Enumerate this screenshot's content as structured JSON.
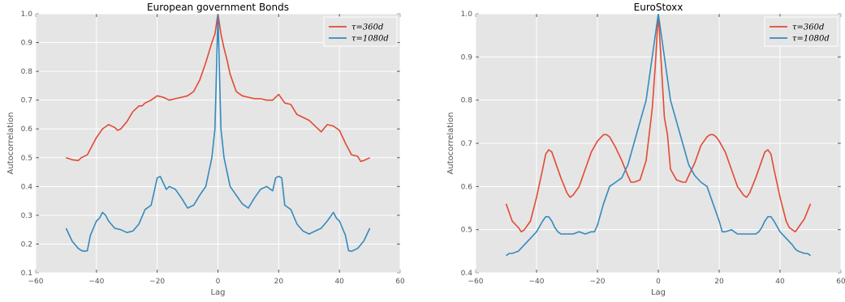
{
  "chart_data": [
    {
      "type": "line",
      "title": "European government Bonds",
      "xlabel": "Lag",
      "ylabel": "Autocorrelation",
      "xlim": [
        -60,
        60
      ],
      "ylim": [
        0.1,
        1.0
      ],
      "xticks": [
        -60,
        -40,
        -20,
        0,
        20,
        40,
        60
      ],
      "xtick_labels": [
        "−60",
        "−40",
        "−20",
        "0",
        "20",
        "40",
        "60"
      ],
      "yticks": [
        0.1,
        0.2,
        0.3,
        0.4,
        0.5,
        0.6,
        0.7,
        0.8,
        0.9,
        1.0
      ],
      "ytick_labels": [
        "0.1",
        "0.2",
        "0.3",
        "0.4",
        "0.5",
        "0.6",
        "0.7",
        "0.8",
        "0.9",
        "1.0"
      ],
      "grid": true,
      "legend": "top-right",
      "series": [
        {
          "name": "τ=360d",
          "color": "#e24a33",
          "points": [
            [
              -50,
              0.5
            ],
            [
              -48,
              0.493
            ],
            [
              -46,
              0.49
            ],
            [
              -45,
              0.5
            ],
            [
              -43,
              0.51
            ],
            [
              -42,
              0.53
            ],
            [
              -40,
              0.57
            ],
            [
              -38,
              0.6
            ],
            [
              -36,
              0.615
            ],
            [
              -35,
              0.61
            ],
            [
              -34,
              0.605
            ],
            [
              -33,
              0.595
            ],
            [
              -32,
              0.6
            ],
            [
              -30,
              0.625
            ],
            [
              -28,
              0.66
            ],
            [
              -26,
              0.68
            ],
            [
              -25,
              0.68
            ],
            [
              -24,
              0.69
            ],
            [
              -22,
              0.7
            ],
            [
              -20,
              0.715
            ],
            [
              -18,
              0.71
            ],
            [
              -16,
              0.7
            ],
            [
              -14,
              0.705
            ],
            [
              -12,
              0.71
            ],
            [
              -10,
              0.715
            ],
            [
              -8,
              0.73
            ],
            [
              -6,
              0.77
            ],
            [
              -4,
              0.83
            ],
            [
              -2,
              0.9
            ],
            [
              -1,
              0.93
            ],
            [
              0,
              1.0
            ],
            [
              1,
              0.93
            ],
            [
              2,
              0.88
            ],
            [
              3,
              0.84
            ],
            [
              4,
              0.79
            ],
            [
              6,
              0.73
            ],
            [
              8,
              0.715
            ],
            [
              10,
              0.71
            ],
            [
              12,
              0.705
            ],
            [
              14,
              0.705
            ],
            [
              16,
              0.7
            ],
            [
              18,
              0.7
            ],
            [
              20,
              0.72
            ],
            [
              22,
              0.69
            ],
            [
              24,
              0.685
            ],
            [
              26,
              0.65
            ],
            [
              28,
              0.64
            ],
            [
              30,
              0.63
            ],
            [
              32,
              0.61
            ],
            [
              34,
              0.59
            ],
            [
              36,
              0.615
            ],
            [
              38,
              0.61
            ],
            [
              40,
              0.595
            ],
            [
              42,
              0.55
            ],
            [
              44,
              0.51
            ],
            [
              46,
              0.505
            ],
            [
              47,
              0.487
            ],
            [
              48,
              0.49
            ],
            [
              50,
              0.5
            ]
          ]
        },
        {
          "name": "τ=1080d",
          "color": "#348abd",
          "points": [
            [
              -50,
              0.255
            ],
            [
              -48,
              0.21
            ],
            [
              -46,
              0.185
            ],
            [
              -45,
              0.178
            ],
            [
              -44,
              0.175
            ],
            [
              -43,
              0.177
            ],
            [
              -42,
              0.23
            ],
            [
              -40,
              0.28
            ],
            [
              -39,
              0.29
            ],
            [
              -38,
              0.31
            ],
            [
              -37,
              0.3
            ],
            [
              -36,
              0.28
            ],
            [
              -34,
              0.255
            ],
            [
              -32,
              0.25
            ],
            [
              -30,
              0.24
            ],
            [
              -28,
              0.245
            ],
            [
              -26,
              0.27
            ],
            [
              -24,
              0.32
            ],
            [
              -22,
              0.335
            ],
            [
              -20,
              0.43
            ],
            [
              -19,
              0.435
            ],
            [
              -17,
              0.39
            ],
            [
              -16,
              0.4
            ],
            [
              -14,
              0.39
            ],
            [
              -12,
              0.36
            ],
            [
              -10,
              0.325
            ],
            [
              -8,
              0.335
            ],
            [
              -6,
              0.37
            ],
            [
              -4,
              0.4
            ],
            [
              -2,
              0.5
            ],
            [
              -1,
              0.6
            ],
            [
              0,
              1.0
            ],
            [
              1,
              0.6
            ],
            [
              2,
              0.5
            ],
            [
              4,
              0.4
            ],
            [
              6,
              0.37
            ],
            [
              8,
              0.34
            ],
            [
              10,
              0.325
            ],
            [
              12,
              0.36
            ],
            [
              14,
              0.39
            ],
            [
              16,
              0.4
            ],
            [
              18,
              0.385
            ],
            [
              19,
              0.43
            ],
            [
              20,
              0.435
            ],
            [
              21,
              0.43
            ],
            [
              22,
              0.335
            ],
            [
              24,
              0.32
            ],
            [
              26,
              0.27
            ],
            [
              28,
              0.245
            ],
            [
              30,
              0.235
            ],
            [
              32,
              0.245
            ],
            [
              34,
              0.255
            ],
            [
              36,
              0.28
            ],
            [
              38,
              0.31
            ],
            [
              39,
              0.29
            ],
            [
              40,
              0.28
            ],
            [
              42,
              0.23
            ],
            [
              43,
              0.177
            ],
            [
              44,
              0.175
            ],
            [
              46,
              0.185
            ],
            [
              48,
              0.21
            ],
            [
              50,
              0.255
            ]
          ]
        }
      ]
    },
    {
      "type": "line",
      "title": "EuroStoxx",
      "xlabel": "Lag",
      "ylabel": "Autocorrelation",
      "xlim": [
        -60,
        60
      ],
      "ylim": [
        0.4,
        1.0
      ],
      "xticks": [
        -60,
        -40,
        -20,
        0,
        20,
        40,
        60
      ],
      "xtick_labels": [
        "−60",
        "−40",
        "−20",
        "0",
        "20",
        "40",
        "60"
      ],
      "yticks": [
        0.4,
        0.5,
        0.6,
        0.7,
        0.8,
        0.9,
        1.0
      ],
      "ytick_labels": [
        "0.4",
        "0.5",
        "0.6",
        "0.7",
        "0.8",
        "0.9",
        "1.0"
      ],
      "grid": true,
      "legend": "top-right",
      "series": [
        {
          "name": "τ=360d",
          "color": "#e24a33",
          "points": [
            [
              -50,
              0.56
            ],
            [
              -48,
              0.52
            ],
            [
              -46,
              0.505
            ],
            [
              -45,
              0.495
            ],
            [
              -44,
              0.5
            ],
            [
              -42,
              0.52
            ],
            [
              -40,
              0.575
            ],
            [
              -38,
              0.64
            ],
            [
              -37,
              0.675
            ],
            [
              -36,
              0.685
            ],
            [
              -35,
              0.68
            ],
            [
              -34,
              0.66
            ],
            [
              -32,
              0.62
            ],
            [
              -30,
              0.585
            ],
            [
              -29,
              0.575
            ],
            [
              -28,
              0.58
            ],
            [
              -26,
              0.6
            ],
            [
              -24,
              0.64
            ],
            [
              -22,
              0.68
            ],
            [
              -20,
              0.705
            ],
            [
              -18,
              0.72
            ],
            [
              -17,
              0.72
            ],
            [
              -16,
              0.715
            ],
            [
              -14,
              0.69
            ],
            [
              -12,
              0.66
            ],
            [
              -10,
              0.625
            ],
            [
              -9,
              0.61
            ],
            [
              -8,
              0.61
            ],
            [
              -6,
              0.615
            ],
            [
              -4,
              0.66
            ],
            [
              -2,
              0.78
            ],
            [
              -1,
              0.88
            ],
            [
              0,
              1.0
            ],
            [
              1,
              0.88
            ],
            [
              2,
              0.76
            ],
            [
              3,
              0.72
            ],
            [
              4,
              0.64
            ],
            [
              6,
              0.615
            ],
            [
              8,
              0.61
            ],
            [
              9,
              0.61
            ],
            [
              10,
              0.625
            ],
            [
              12,
              0.655
            ],
            [
              14,
              0.695
            ],
            [
              16,
              0.715
            ],
            [
              17,
              0.72
            ],
            [
              18,
              0.72
            ],
            [
              19,
              0.715
            ],
            [
              20,
              0.705
            ],
            [
              22,
              0.68
            ],
            [
              24,
              0.64
            ],
            [
              26,
              0.6
            ],
            [
              28,
              0.58
            ],
            [
              29,
              0.575
            ],
            [
              30,
              0.585
            ],
            [
              32,
              0.62
            ],
            [
              34,
              0.66
            ],
            [
              35,
              0.68
            ],
            [
              36,
              0.685
            ],
            [
              37,
              0.675
            ],
            [
              38,
              0.64
            ],
            [
              40,
              0.575
            ],
            [
              42,
              0.52
            ],
            [
              43,
              0.505
            ],
            [
              44,
              0.5
            ],
            [
              45,
              0.495
            ],
            [
              46,
              0.505
            ],
            [
              48,
              0.525
            ],
            [
              50,
              0.56
            ]
          ]
        },
        {
          "name": "τ=1080d",
          "color": "#348abd",
          "points": [
            [
              -50,
              0.44
            ],
            [
              -49,
              0.445
            ],
            [
              -48,
              0.445
            ],
            [
              -46,
              0.45
            ],
            [
              -44,
              0.465
            ],
            [
              -42,
              0.48
            ],
            [
              -40,
              0.495
            ],
            [
              -38,
              0.52
            ],
            [
              -37,
              0.53
            ],
            [
              -36,
              0.53
            ],
            [
              -35,
              0.52
            ],
            [
              -34,
              0.505
            ],
            [
              -33,
              0.495
            ],
            [
              -32,
              0.49
            ],
            [
              -30,
              0.49
            ],
            [
              -28,
              0.49
            ],
            [
              -26,
              0.495
            ],
            [
              -24,
              0.49
            ],
            [
              -22,
              0.495
            ],
            [
              -21,
              0.495
            ],
            [
              -20,
              0.51
            ],
            [
              -18,
              0.56
            ],
            [
              -16,
              0.6
            ],
            [
              -14,
              0.61
            ],
            [
              -12,
              0.62
            ],
            [
              -10,
              0.65
            ],
            [
              -8,
              0.7
            ],
            [
              -6,
              0.75
            ],
            [
              -4,
              0.8
            ],
            [
              -2,
              0.9
            ],
            [
              0,
              1.0
            ],
            [
              2,
              0.9
            ],
            [
              4,
              0.8
            ],
            [
              6,
              0.75
            ],
            [
              8,
              0.7
            ],
            [
              10,
              0.65
            ],
            [
              12,
              0.625
            ],
            [
              14,
              0.61
            ],
            [
              16,
              0.6
            ],
            [
              18,
              0.56
            ],
            [
              20,
              0.52
            ],
            [
              21,
              0.495
            ],
            [
              22,
              0.495
            ],
            [
              24,
              0.5
            ],
            [
              26,
              0.49
            ],
            [
              28,
              0.49
            ],
            [
              30,
              0.49
            ],
            [
              32,
              0.49
            ],
            [
              33,
              0.495
            ],
            [
              34,
              0.505
            ],
            [
              35,
              0.52
            ],
            [
              36,
              0.53
            ],
            [
              37,
              0.53
            ],
            [
              38,
              0.52
            ],
            [
              40,
              0.495
            ],
            [
              42,
              0.48
            ],
            [
              44,
              0.465
            ],
            [
              45,
              0.455
            ],
            [
              46,
              0.45
            ],
            [
              48,
              0.445
            ],
            [
              49,
              0.445
            ],
            [
              50,
              0.44
            ]
          ]
        }
      ]
    }
  ]
}
